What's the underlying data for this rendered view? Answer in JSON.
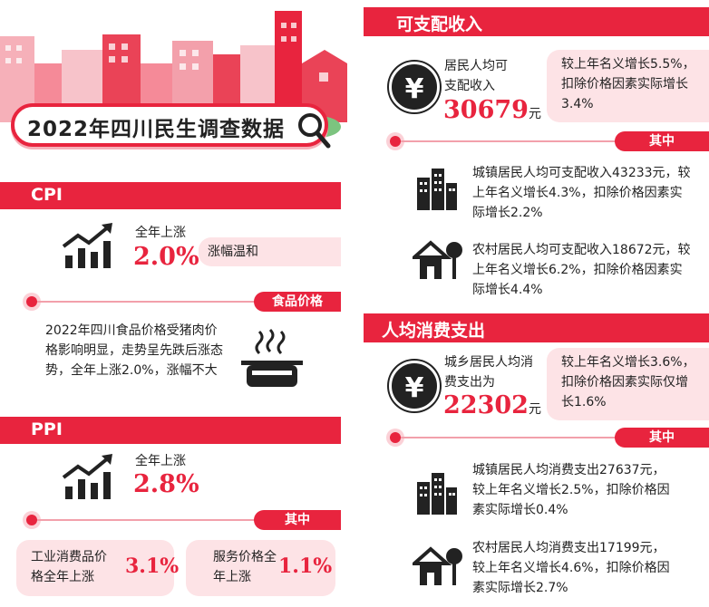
{
  "header": {
    "title": "2022年四川民生调查数据"
  },
  "cpi": {
    "section_title": "CPI",
    "label": "全年上涨",
    "value": "2.0%",
    "note": "涨幅温和",
    "food_tag": "食品价格",
    "food_text": "2022年四川食品价格受猪肉价格影响明显，走势呈先跌后涨态势，全年上涨2.0%，涨幅不大"
  },
  "ppi": {
    "section_title": "PPI",
    "label": "全年上涨",
    "value": "2.8%",
    "sub_tag": "其中",
    "items": [
      {
        "label": "工业消费品价格全年上涨",
        "value": "3.1%"
      },
      {
        "label": "服务价格全年上涨",
        "value": "1.1%"
      }
    ]
  },
  "income": {
    "section_title": "可支配收入",
    "label": "居民人均可支配收入",
    "value": "30679",
    "unit": "元",
    "note": "较上年名义增长5.5%，扣除价格因素实际增长3.4%",
    "sub_tag": "其中",
    "urban": "城镇居民人均可支配收入43233元，较上年名义增长4.3%，扣除价格因素实际增长2.2%",
    "rural": "农村居民人均可支配收入18672元，较上年名义增长6.2%，扣除价格因素实际增长4.4%"
  },
  "consume": {
    "section_title": "人均消费支出",
    "label": "城乡居民人均消费支出为",
    "value": "22302",
    "unit": "元",
    "note": "较上年名义增长3.6%，扣除价格因素实际仅增长1.6%",
    "sub_tag": "其中",
    "urban": "城镇居民人均消费支出27637元，较上年名义增长2.5%，扣除价格因素实际增长0.4%",
    "rural": "农村居民人均消费支出17199元，较上年名义增长4.6%，扣除价格因素实际增长2.7%"
  },
  "icons": {
    "currency": "¥",
    "chart": "trend-chart-icon",
    "pot": "pot-icon",
    "city": "city-buildings-icon",
    "house": "house-tree-icon"
  }
}
